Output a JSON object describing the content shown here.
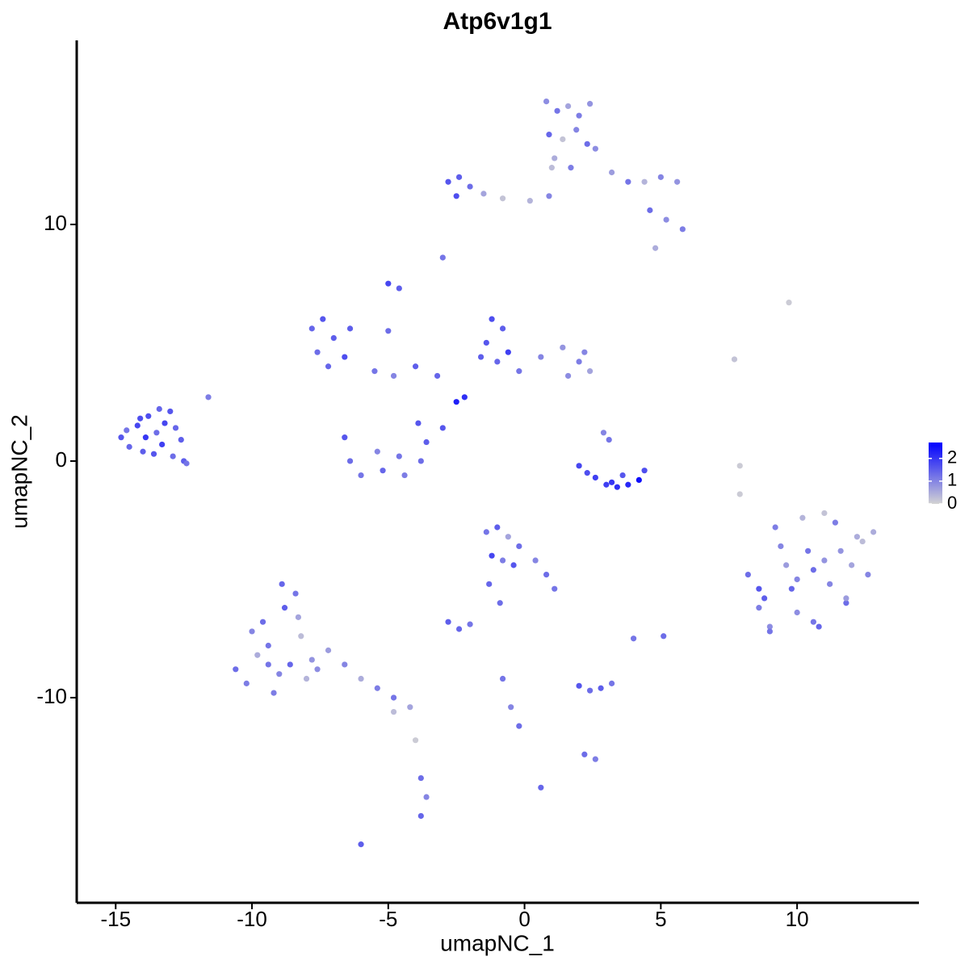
{
  "chart_data": {
    "type": "scatter",
    "title": "Atp6v1g1",
    "x_label": "umapNC_1",
    "y_label": "umapNC_2",
    "xlim": [
      -16.43,
      14.47
    ],
    "ylim": [
      -18.67,
      17.78
    ],
    "xticks": [
      -15,
      -10,
      -5,
      0,
      5,
      10
    ],
    "yticks": [
      -10,
      0,
      10
    ],
    "grid": false,
    "colorbar": {
      "lim": [
        0,
        2.7
      ],
      "ticks": [
        0,
        1,
        2
      ],
      "low_color": "#d3d3d3",
      "high_color": "#0000ff"
    },
    "x": [
      -14.8,
      -14.5,
      -14.2,
      -14.0,
      -13.8,
      -13.5,
      -13.3,
      -13.0,
      -12.8,
      -12.6,
      -14.6,
      -14.1,
      -13.6,
      -13.2,
      -12.9,
      -12.5,
      -13.9,
      -13.4,
      -12.4,
      -11.6,
      0.8,
      1.2,
      1.6,
      2.0,
      2.4,
      0.9,
      1.4,
      1.9,
      2.3,
      1.1,
      1.7,
      2.6,
      3.2,
      3.8,
      4.4,
      5.0,
      5.6,
      4.6,
      5.2,
      5.8,
      4.8,
      -2.8,
      -2.4,
      -2.0,
      -1.5,
      -0.8,
      0.2,
      0.9,
      1.0,
      -2.5,
      -7.8,
      -7.4,
      -7.0,
      -7.6,
      -6.6,
      -7.2,
      -6.4,
      -5.5,
      -4.8,
      -4.0,
      -3.2,
      -2.5,
      -2.2,
      -3.0,
      -5.0,
      -5.0,
      -4.6,
      -1.2,
      -0.8,
      -1.4,
      -0.6,
      -1.0,
      -0.2,
      0.6,
      1.4,
      2.0,
      2.4,
      2.2,
      1.6,
      -1.6,
      -6.6,
      -6.4,
      -6.0,
      -5.2,
      -4.4,
      -3.8,
      -3.6,
      -5.4,
      -4.6,
      -3.9,
      2.0,
      2.6,
      3.2,
      3.8,
      4.2,
      4.4,
      3.0,
      3.4,
      3.6,
      3.1,
      2.9,
      2.3,
      8.2,
      8.6,
      9.0,
      9.4,
      9.8,
      10.2,
      10.6,
      11.0,
      11.4,
      11.8,
      12.2,
      12.6,
      8.8,
      9.6,
      10.4,
      11.2,
      12.0,
      9.2,
      10.0,
      10.8,
      11.6,
      12.4,
      9.0,
      10.0,
      11.0,
      8.6,
      11.8,
      10.6,
      12.8,
      7.9,
      -1.4,
      -1.0,
      -0.6,
      -0.2,
      -1.2,
      -0.8,
      -0.4,
      0.4,
      0.8,
      1.1,
      -1.3,
      -0.9,
      -10.6,
      -10.2,
      -9.8,
      -9.4,
      -9.0,
      -8.6,
      -8.2,
      -7.8,
      -8.8,
      -8.4,
      -9.6,
      -10.0,
      -9.2,
      -8.0,
      -7.6,
      -8.9,
      -8.3,
      -9.4,
      -7.2,
      -6.6,
      -6.0,
      -5.4,
      -4.8,
      -4.2,
      -4.8,
      -4.0,
      -3.8,
      -3.6,
      -3.8,
      -6.0,
      -2.8,
      -2.4,
      -2.0,
      2.0,
      2.4,
      2.8,
      3.2,
      2.2,
      2.6,
      -0.8,
      -0.5,
      -0.2,
      0.6,
      5.1,
      4.0,
      7.9,
      7.7,
      9.7,
      -3.0
    ],
    "y": [
      1.0,
      0.6,
      1.5,
      0.4,
      1.9,
      1.2,
      0.7,
      2.1,
      1.4,
      0.9,
      1.3,
      1.8,
      0.3,
      1.6,
      0.2,
      0.0,
      1.0,
      2.2,
      -0.1,
      2.7,
      15.2,
      14.8,
      15.0,
      14.6,
      15.1,
      13.8,
      13.6,
      14.0,
      13.4,
      12.8,
      12.4,
      13.2,
      12.2,
      11.8,
      11.8,
      12.0,
      11.8,
      10.6,
      10.2,
      9.8,
      9.0,
      11.8,
      12.0,
      11.6,
      11.3,
      11.1,
      11.0,
      11.2,
      12.4,
      11.2,
      5.6,
      6.0,
      5.2,
      4.6,
      4.4,
      4.0,
      5.6,
      3.8,
      3.6,
      4.0,
      3.6,
      2.5,
      2.7,
      1.4,
      5.5,
      7.5,
      7.3,
      6.0,
      5.6,
      5.0,
      4.6,
      4.2,
      3.8,
      4.4,
      4.8,
      4.2,
      3.8,
      4.6,
      3.6,
      4.4,
      1.0,
      0.0,
      -0.6,
      -0.4,
      -0.6,
      0.0,
      0.8,
      0.4,
      0.2,
      1.6,
      -0.2,
      -0.7,
      -0.9,
      -1.0,
      -0.8,
      -0.4,
      -1.0,
      -1.1,
      -0.6,
      0.9,
      1.2,
      -0.5,
      -4.8,
      -6.2,
      -7.0,
      -3.6,
      -5.4,
      -2.4,
      -6.8,
      -4.2,
      -2.6,
      -6.0,
      -3.2,
      -4.8,
      -5.8,
      -4.4,
      -3.8,
      -5.2,
      -4.4,
      -2.8,
      -6.4,
      -7.0,
      -3.8,
      -3.4,
      -7.2,
      -5.0,
      -2.2,
      -5.4,
      -5.8,
      -4.6,
      -3.0,
      -1.4,
      -3.0,
      -2.8,
      -3.2,
      -3.6,
      -4.0,
      -4.2,
      -4.4,
      -4.2,
      -4.8,
      -5.4,
      -5.2,
      -6.0,
      -8.8,
      -9.4,
      -8.2,
      -7.8,
      -9.0,
      -8.6,
      -7.4,
      -8.4,
      -6.2,
      -5.6,
      -6.8,
      -7.2,
      -9.8,
      -9.2,
      -8.8,
      -5.2,
      -6.6,
      -8.6,
      -8.0,
      -8.6,
      -9.2,
      -9.6,
      -10.0,
      -10.4,
      -10.6,
      -11.8,
      -13.4,
      -14.2,
      -15.0,
      -16.2,
      -6.8,
      -7.1,
      -6.9,
      -9.5,
      -9.7,
      -9.6,
      -9.4,
      -12.4,
      -12.6,
      -9.2,
      -10.4,
      -11.2,
      -13.8,
      -7.4,
      -7.5,
      -0.2,
      4.3,
      6.7,
      8.6
    ],
    "expression": [
      1.6,
      1.4,
      1.8,
      1.5,
      1.7,
      1.3,
      1.9,
      1.6,
      1.4,
      1.5,
      1.2,
      1.7,
      1.6,
      1.8,
      1.3,
      1.5,
      2.0,
      1.4,
      1.2,
      1.1,
      0.9,
      1.2,
      0.6,
      1.1,
      0.8,
      1.4,
      0.2,
      1.0,
      1.3,
      0.5,
      1.1,
      0.9,
      0.7,
      1.2,
      0.4,
      1.0,
      0.8,
      1.3,
      0.9,
      1.1,
      0.5,
      1.6,
      1.5,
      1.3,
      0.6,
      0.2,
      0.4,
      1.0,
      0.3,
      1.7,
      1.4,
      1.6,
      1.5,
      1.3,
      1.7,
      1.4,
      1.5,
      1.2,
      1.0,
      1.5,
      1.4,
      2.3,
      2.1,
      1.6,
      1.3,
      1.8,
      1.5,
      1.7,
      1.5,
      1.6,
      1.9,
      1.4,
      1.2,
      1.0,
      0.8,
      1.1,
      0.6,
      1.0,
      0.9,
      1.5,
      1.6,
      1.3,
      1.2,
      1.4,
      1.1,
      1.3,
      1.5,
      1.0,
      1.2,
      1.6,
      1.8,
      1.9,
      2.0,
      2.2,
      2.5,
      1.7,
      1.9,
      2.1,
      1.6,
      1.2,
      1.0,
      1.7,
      1.3,
      1.1,
      0.9,
      1.0,
      1.4,
      0.4,
      1.2,
      0.8,
      1.1,
      1.3,
      0.5,
      1.0,
      1.5,
      0.7,
      1.2,
      1.0,
      0.6,
      1.1,
      0.9,
      1.4,
      0.8,
      0.3,
      1.2,
      1.0,
      0.2,
      1.6,
      0.7,
      1.3,
      0.5,
      0.1,
      1.2,
      1.5,
      0.6,
      1.3,
      1.8,
      1.1,
      1.6,
      1.0,
      1.3,
      1.2,
      1.4,
      1.3,
      1.3,
      1.1,
      0.5,
      1.2,
      1.0,
      1.4,
      0.3,
      0.8,
      1.5,
      1.2,
      1.3,
      1.0,
      1.1,
      0.4,
      0.9,
      1.4,
      0.6,
      1.2,
      0.7,
      1.0,
      0.5,
      1.1,
      1.2,
      0.6,
      0.3,
      0.1,
      1.3,
      1.0,
      1.4,
      1.5,
      1.5,
      1.4,
      1.2,
      1.6,
      1.3,
      1.5,
      1.2,
      1.3,
      1.1,
      1.2,
      1.0,
      1.3,
      1.4,
      1.3,
      1.2,
      0.1,
      0.2,
      0.1,
      1.2
    ]
  }
}
